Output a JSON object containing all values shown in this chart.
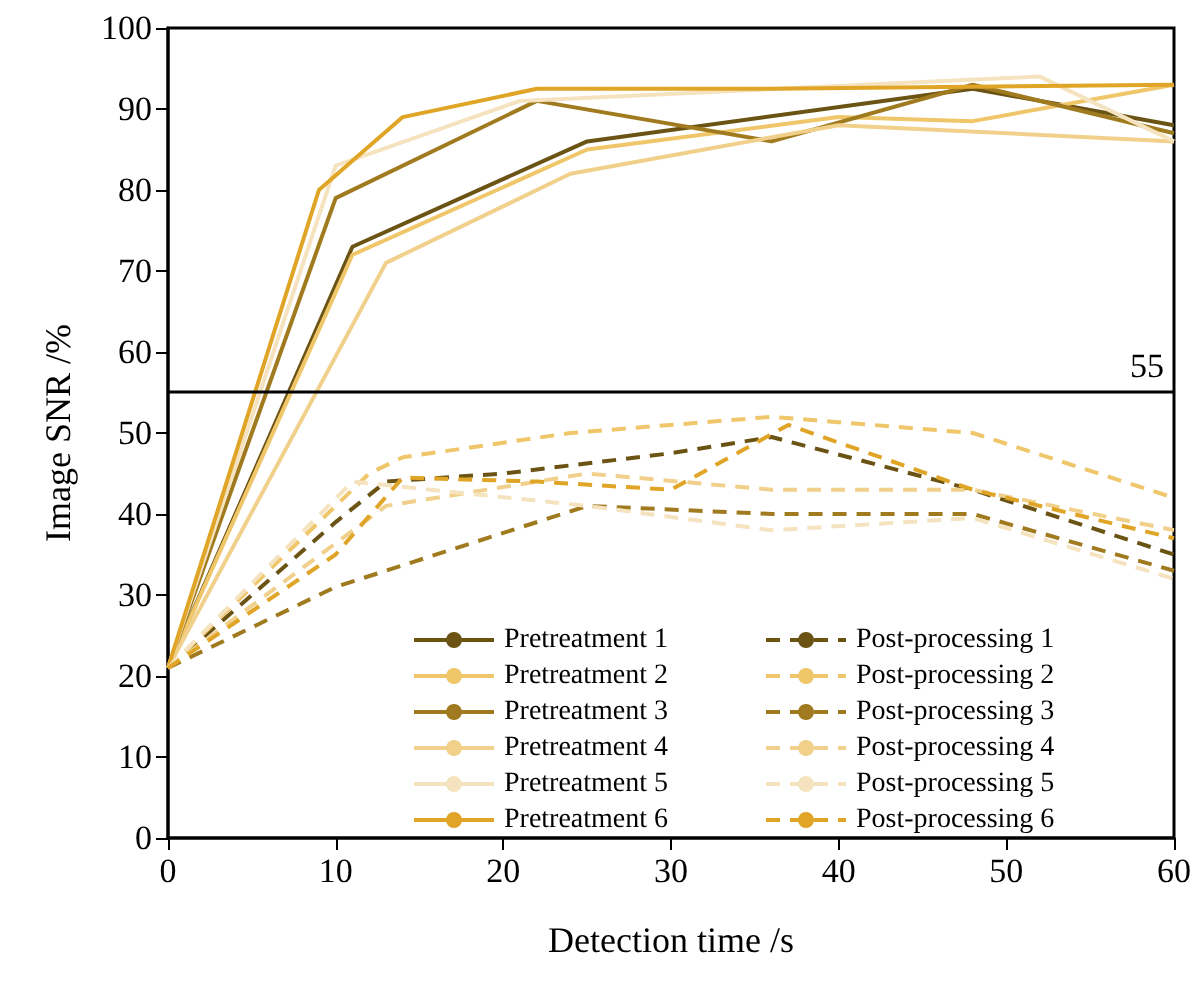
{
  "chart_data": {
    "type": "line",
    "xlabel": "Detection time /s",
    "ylabel": "Image SNR /%",
    "xlim": [
      0,
      60
    ],
    "xticks": [
      0,
      10,
      20,
      30,
      40,
      50,
      60
    ],
    "ylim": [
      0,
      100
    ],
    "yticks": [
      0,
      10,
      20,
      30,
      40,
      50,
      60,
      70,
      80,
      90,
      100
    ],
    "grid": false,
    "legend": "bottom",
    "marker": "none",
    "ref_lines": [
      {
        "axis": "y",
        "value": 55,
        "label": "55",
        "color": "#000000",
        "line_style": "solid"
      }
    ],
    "series": [
      {
        "name": "Pretreatment 1",
        "color": "#6b5314",
        "line_style": "solid",
        "x": [
          0,
          11,
          25,
          48,
          60
        ],
        "values": [
          21,
          73,
          86,
          92.5,
          88
        ]
      },
      {
        "name": "Pretreatment 2",
        "color": "#f0c66a",
        "line_style": "solid",
        "x": [
          0,
          11,
          25,
          40,
          48,
          60
        ],
        "values": [
          21,
          72,
          85,
          89,
          88.5,
          93
        ]
      },
      {
        "name": "Pretreatment 3",
        "color": "#a07a1e",
        "line_style": "solid",
        "x": [
          0,
          10,
          22,
          36,
          48,
          60
        ],
        "values": [
          21,
          79,
          91,
          86,
          93,
          87
        ]
      },
      {
        "name": "Pretreatment 4",
        "color": "#f0d08a",
        "line_style": "solid",
        "x": [
          0,
          13,
          24,
          40,
          60
        ],
        "values": [
          21,
          71,
          82,
          88,
          86
        ]
      },
      {
        "name": "Pretreatment 5",
        "color": "#f5e3c0",
        "line_style": "solid",
        "x": [
          0,
          10,
          21,
          52,
          60
        ],
        "values": [
          21,
          83,
          91,
          94,
          86
        ]
      },
      {
        "name": "Pretreatment 6",
        "color": "#e0a526",
        "line_style": "solid",
        "x": [
          0,
          9,
          14,
          22,
          36,
          60
        ],
        "values": [
          21,
          80,
          89,
          92.5,
          92.5,
          93
        ]
      },
      {
        "name": "Post-processing 1",
        "color": "#6b5314",
        "line_style": "dashed",
        "x": [
          0,
          5,
          10,
          13,
          20,
          30,
          36,
          48,
          60
        ],
        "values": [
          21,
          30,
          39,
          44,
          45,
          47.5,
          49.5,
          43,
          35
        ]
      },
      {
        "name": "Post-processing 2",
        "color": "#f0c66a",
        "line_style": "dashed",
        "x": [
          0,
          12,
          14,
          24,
          36,
          48,
          60
        ],
        "values": [
          21,
          45,
          47,
          50,
          52,
          50,
          42
        ]
      },
      {
        "name": "Post-processing 3",
        "color": "#a07a1e",
        "line_style": "dashed",
        "x": [
          0,
          10,
          25,
          36,
          48,
          60
        ],
        "values": [
          21,
          31,
          41,
          40,
          40,
          33
        ]
      },
      {
        "name": "Post-processing 4",
        "color": "#f0d08a",
        "line_style": "dashed",
        "x": [
          0,
          13,
          25,
          36,
          48,
          60
        ],
        "values": [
          21,
          41,
          45,
          43,
          43,
          38
        ]
      },
      {
        "name": "Post-processing 5",
        "color": "#f5e3c0",
        "line_style": "dashed",
        "x": [
          0,
          11,
          25,
          36,
          48,
          60
        ],
        "values": [
          21,
          44,
          41,
          38,
          39.5,
          32
        ]
      },
      {
        "name": "Post-processing 6",
        "color": "#e0a526",
        "line_style": "dashed",
        "x": [
          0,
          10,
          14,
          22,
          30,
          37,
          48,
          60
        ],
        "values": [
          21,
          35,
          44.5,
          44,
          43,
          51,
          43,
          37
        ]
      }
    ]
  }
}
